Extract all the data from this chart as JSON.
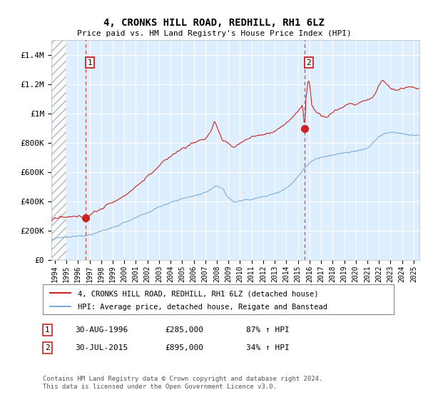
{
  "title": "4, CRONKS HILL ROAD, REDHILL, RH1 6LZ",
  "subtitle": "Price paid vs. HM Land Registry's House Price Index (HPI)",
  "ylabel_ticks": [
    "£0",
    "£200K",
    "£400K",
    "£600K",
    "£800K",
    "£1M",
    "£1.2M",
    "£1.4M"
  ],
  "ytick_values": [
    0,
    200000,
    400000,
    600000,
    800000,
    1000000,
    1200000,
    1400000
  ],
  "ylim": [
    0,
    1500000
  ],
  "xlim_start": 1993.7,
  "xlim_end": 2025.5,
  "xticks": [
    1994,
    1995,
    1996,
    1997,
    1998,
    1999,
    2000,
    2001,
    2002,
    2003,
    2004,
    2005,
    2006,
    2007,
    2008,
    2009,
    2010,
    2011,
    2012,
    2013,
    2014,
    2015,
    2016,
    2017,
    2018,
    2019,
    2020,
    2021,
    2022,
    2023,
    2024,
    2025
  ],
  "sale1_date": 1996.667,
  "sale1_price": 285000,
  "sale1_label": "1",
  "sale1_date_str": "30-AUG-1996",
  "sale1_price_str": "£285,000",
  "sale1_hpi_str": "87% ↑ HPI",
  "sale2_date": 2015.583,
  "sale2_price": 895000,
  "sale2_label": "2",
  "sale2_date_str": "30-JUL-2015",
  "sale2_price_str": "£895,000",
  "sale2_hpi_str": "34% ↑ HPI",
  "hpi_line_color": "#7aaddb",
  "price_line_color": "#cc2222",
  "sale_dot_color": "#cc2222",
  "background_color": "#ddeeff",
  "grid_color": "#ffffff",
  "legend_label1": "4, CRONKS HILL ROAD, REDHILL, RH1 6LZ (detached house)",
  "legend_label2": "HPI: Average price, detached house, Reigate and Banstead",
  "footnote": "Contains HM Land Registry data © Crown copyright and database right 2024.\nThis data is licensed under the Open Government Licence v3.0."
}
